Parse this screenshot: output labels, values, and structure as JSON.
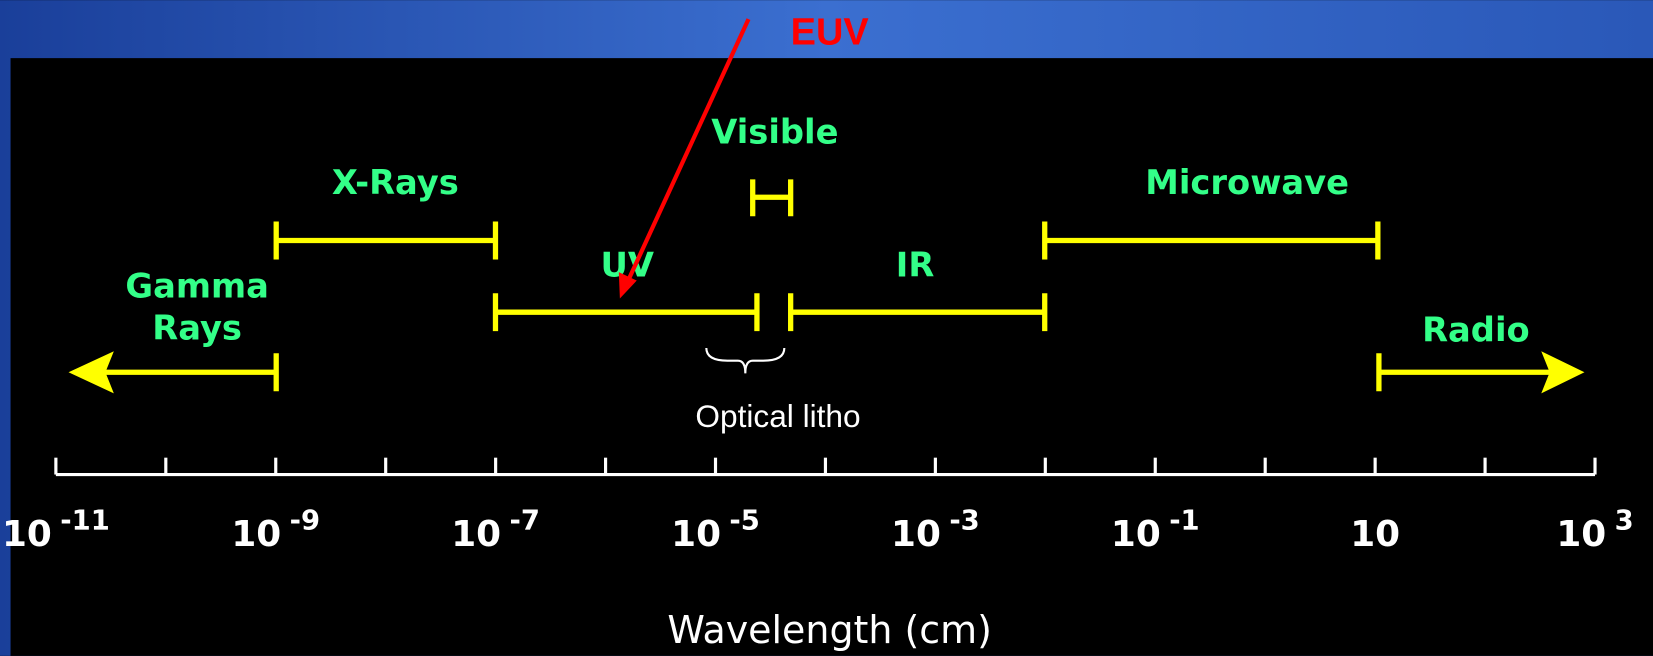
{
  "bands": [
    {
      "label": [
        "Gamma",
        "Rays"
      ]
    },
    {
      "label": [
        "X-Rays"
      ]
    },
    {
      "label": [
        "UV"
      ]
    },
    {
      "label": [
        "Visible"
      ]
    },
    {
      "label": [
        "IR"
      ]
    },
    {
      "label": [
        "Microwave"
      ]
    },
    {
      "label": [
        "Radio"
      ]
    }
  ],
  "axis": {
    "tick_labels": [
      {
        "base": "10",
        "exp": "-11"
      },
      {
        "base": "10",
        "exp": "-9"
      },
      {
        "base": "10",
        "exp": "-7"
      },
      {
        "base": "10",
        "exp": "-5"
      },
      {
        "base": "10",
        "exp": "-3"
      },
      {
        "base": "10",
        "exp": "-1"
      },
      {
        "base": "10",
        "exp": null
      },
      {
        "base": "10",
        "exp": "3"
      }
    ],
    "label": "Wavelength (cm)"
  },
  "annotations": {
    "euv": "EUV",
    "optical": "Optical litho"
  }
}
